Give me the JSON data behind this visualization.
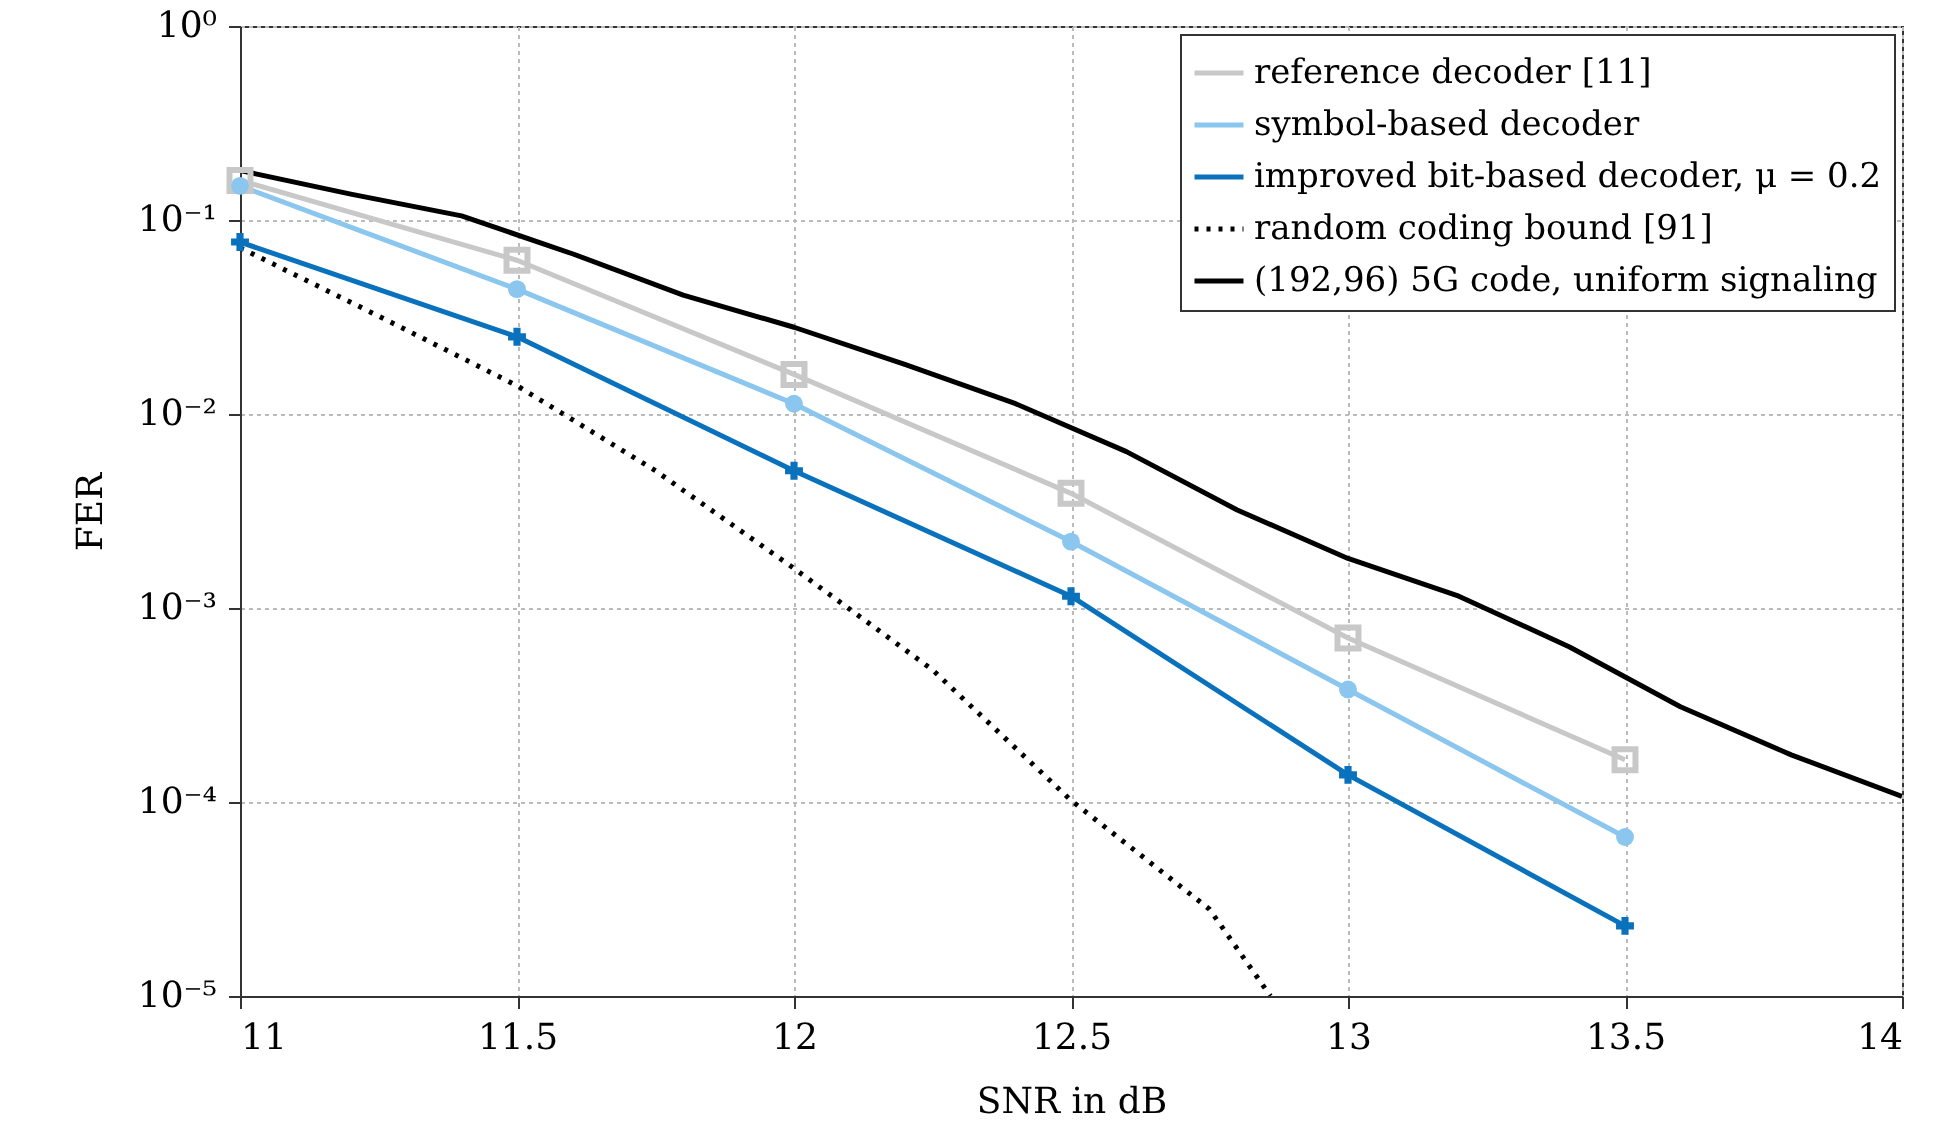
{
  "chart_data": {
    "type": "line",
    "xlabel": "SNR in dB",
    "ylabel": "FER",
    "log": "y",
    "xlim": [
      11,
      14
    ],
    "xticks": [
      11,
      11.5,
      12,
      12.5,
      13,
      13.5,
      14
    ],
    "ylim": [
      1e-05,
      1
    ],
    "yticks": [
      {
        "value": 1,
        "label": "10⁰"
      },
      {
        "value": 0.1,
        "label": "10⁻¹"
      },
      {
        "value": 0.01,
        "label": "10⁻²"
      },
      {
        "value": 0.001,
        "label": "10⁻³"
      },
      {
        "value": 0.0001,
        "label": "10⁻⁴"
      },
      {
        "value": 1e-05,
        "label": "10⁻⁵"
      }
    ],
    "grid": true,
    "legend": "top right",
    "series": [
      {
        "name": "reference decoder [11]",
        "color": "#c8c8c8",
        "marker": "square",
        "line_style": "solid",
        "x": [
          11,
          11.5,
          12,
          12.5,
          13,
          13.5
        ],
        "values": [
          0.16,
          0.062,
          0.016,
          0.0039,
          0.0007,
          0.000165
        ]
      },
      {
        "name": "symbol-based decoder",
        "color": "#8ac6ee",
        "marker": "circle",
        "line_style": "solid",
        "x": [
          11,
          11.5,
          12,
          12.5,
          13,
          13.5
        ],
        "values": [
          0.15,
          0.044,
          0.0113,
          0.0022,
          0.00038,
          6.6e-05
        ]
      },
      {
        "name": "improved bit-based decoder, μ = 0.2",
        "color": "#0a72bd",
        "marker": "cross",
        "line_style": "solid",
        "x": [
          11,
          11.5,
          12,
          12.5,
          13,
          13.5
        ],
        "values": [
          0.077,
          0.025,
          0.0051,
          0.00115,
          0.000138,
          2.3e-05
        ]
      },
      {
        "name": "random coding bound [91]",
        "color": "#000000",
        "line_style": "dotted",
        "x": [
          11,
          11.25,
          11.5,
          11.75,
          12,
          12.25,
          12.5,
          12.75,
          12.86
        ],
        "values": [
          0.072,
          0.032,
          0.014,
          0.0051,
          0.0016,
          0.00048,
          0.000102,
          2.8e-05,
          1e-05
        ]
      },
      {
        "name": "(192,96) 5G code, uniform signaling",
        "color": "#000000",
        "line_style": "solid",
        "x": [
          11,
          11.2,
          11.4,
          11.6,
          11.8,
          12,
          12.2,
          12.4,
          12.6,
          12.8,
          13,
          13.2,
          13.4,
          13.6,
          13.8,
          14
        ],
        "values": [
          0.18,
          0.136,
          0.105,
          0.067,
          0.041,
          0.028,
          0.018,
          0.0113,
          0.0064,
          0.0032,
          0.0018,
          0.00115,
          0.00063,
          0.00031,
          0.000175,
          0.000107
        ]
      }
    ]
  }
}
